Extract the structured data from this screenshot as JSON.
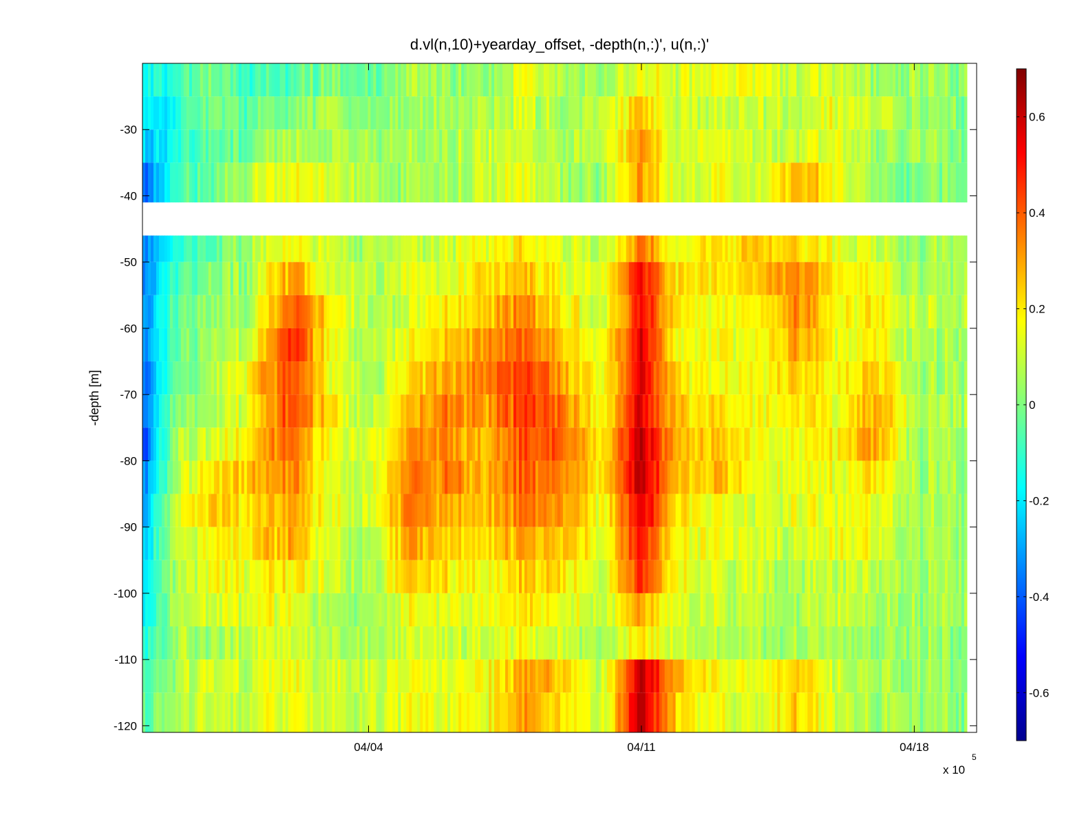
{
  "chart_data": {
    "type": "heatmap",
    "title": "d.vl(n,10)+yearday_offset, -depth(n,:)', u(n,:)'",
    "xlabel": "",
    "ylabel": "-depth [m]",
    "x_multiplier_label": "x 10",
    "x_multiplier_exponent": "5",
    "x_ticks": [
      {
        "value": 4.0,
        "label": "04/04"
      },
      {
        "value": 11.0,
        "label": "04/11"
      },
      {
        "value": 18.0,
        "label": "04/18"
      }
    ],
    "xlim": [
      -1.8,
      19.6
    ],
    "y_ticks": [
      -30,
      -40,
      -50,
      -60,
      -70,
      -80,
      -90,
      -100,
      -110,
      -120
    ],
    "ylim": [
      -121,
      -20
    ],
    "depth_bins": [
      {
        "top": -20,
        "bottom": -25
      },
      {
        "top": -25,
        "bottom": -30
      },
      {
        "top": -30,
        "bottom": -35
      },
      {
        "top": -35,
        "bottom": -41
      },
      {
        "top": -46,
        "bottom": -50
      },
      {
        "top": -50,
        "bottom": -55
      },
      {
        "top": -55,
        "bottom": -60
      },
      {
        "top": -60,
        "bottom": -65
      },
      {
        "top": -65,
        "bottom": -70
      },
      {
        "top": -70,
        "bottom": -75
      },
      {
        "top": -75,
        "bottom": -80
      },
      {
        "top": -80,
        "bottom": -85
      },
      {
        "top": -85,
        "bottom": -90
      },
      {
        "top": -90,
        "bottom": -95
      },
      {
        "top": -95,
        "bottom": -100
      },
      {
        "top": -100,
        "bottom": -105
      },
      {
        "top": -105,
        "bottom": -110
      },
      {
        "top": -110,
        "bottom": -115
      },
      {
        "top": -115,
        "bottom": -121
      }
    ],
    "time_nodes": [
      -1.8,
      -1.0,
      0.0,
      1.0,
      2.0,
      3.0,
      4.0,
      5.0,
      6.0,
      7.0,
      8.0,
      9.0,
      10.0,
      11.0,
      12.0,
      13.0,
      14.0,
      15.0,
      16.0,
      17.0,
      18.0,
      19.6
    ],
    "value_grid": [
      [
        -0.15,
        -0.12,
        0.0,
        -0.12,
        -0.05,
        0.0,
        -0.05,
        0.05,
        0.05,
        0.0,
        0.15,
        0.05,
        0.05,
        0.15,
        0.12,
        0.15,
        0.15,
        0.1,
        0.12,
        0.05,
        0.05,
        0.0
      ],
      [
        -0.2,
        -0.15,
        0.0,
        -0.05,
        0.0,
        0.05,
        0.0,
        0.05,
        0.05,
        0.05,
        0.1,
        0.05,
        0.1,
        0.25,
        0.1,
        0.1,
        0.1,
        0.1,
        0.15,
        0.1,
        0.05,
        0.0
      ],
      [
        -0.25,
        -0.15,
        -0.05,
        0.0,
        0.05,
        0.05,
        0.05,
        0.05,
        0.05,
        0.1,
        0.1,
        0.05,
        0.1,
        0.3,
        0.1,
        0.15,
        0.1,
        0.1,
        0.15,
        0.05,
        0.05,
        0.0
      ],
      [
        -0.4,
        -0.1,
        -0.05,
        0.1,
        0.15,
        0.1,
        0.05,
        0.05,
        0.05,
        0.1,
        0.15,
        0.05,
        0.05,
        0.3,
        0.1,
        0.15,
        0.1,
        0.3,
        0.15,
        0.05,
        0.0,
        0.0
      ],
      [
        -0.35,
        -0.15,
        -0.05,
        0.05,
        0.15,
        0.1,
        0.05,
        0.1,
        0.1,
        0.15,
        0.2,
        0.1,
        0.1,
        0.35,
        0.15,
        0.2,
        0.25,
        0.2,
        0.15,
        0.1,
        0.05,
        0.05
      ],
      [
        -0.35,
        -0.1,
        0.0,
        0.05,
        0.3,
        0.1,
        0.05,
        0.15,
        0.15,
        0.2,
        0.25,
        0.15,
        0.15,
        0.5,
        0.2,
        0.2,
        0.25,
        0.35,
        0.2,
        0.15,
        0.05,
        0.05
      ],
      [
        -0.35,
        -0.05,
        0.0,
        0.05,
        0.4,
        0.2,
        0.05,
        0.1,
        0.2,
        0.25,
        0.35,
        0.2,
        0.1,
        0.5,
        0.2,
        0.15,
        0.15,
        0.35,
        0.15,
        0.2,
        0.1,
        0.05
      ],
      [
        -0.35,
        -0.05,
        0.05,
        0.1,
        0.5,
        0.15,
        0.05,
        0.15,
        0.25,
        0.3,
        0.4,
        0.25,
        0.15,
        0.55,
        0.15,
        0.15,
        0.15,
        0.3,
        0.15,
        0.2,
        0.05,
        0.05
      ],
      [
        -0.4,
        -0.05,
        0.05,
        0.2,
        0.45,
        0.15,
        0.05,
        0.2,
        0.3,
        0.35,
        0.45,
        0.3,
        0.15,
        0.55,
        0.2,
        0.15,
        0.15,
        0.25,
        0.15,
        0.25,
        0.05,
        0.05
      ],
      [
        -0.4,
        0.0,
        0.05,
        0.15,
        0.45,
        0.2,
        0.05,
        0.25,
        0.35,
        0.3,
        0.45,
        0.35,
        0.15,
        0.55,
        0.25,
        0.2,
        0.15,
        0.2,
        0.15,
        0.3,
        0.1,
        0.05
      ],
      [
        -0.45,
        0.05,
        0.1,
        0.2,
        0.4,
        0.15,
        0.1,
        0.3,
        0.35,
        0.25,
        0.4,
        0.4,
        0.2,
        0.6,
        0.25,
        0.25,
        0.15,
        0.15,
        0.2,
        0.3,
        0.05,
        0.05
      ],
      [
        -0.35,
        0.05,
        0.2,
        0.25,
        0.35,
        0.1,
        0.1,
        0.35,
        0.35,
        0.25,
        0.4,
        0.35,
        0.2,
        0.6,
        0.25,
        0.25,
        0.15,
        0.15,
        0.15,
        0.2,
        0.05,
        0.05
      ],
      [
        -0.3,
        0.1,
        0.25,
        0.2,
        0.3,
        0.15,
        0.1,
        0.35,
        0.3,
        0.25,
        0.35,
        0.3,
        0.15,
        0.55,
        0.2,
        0.15,
        0.1,
        0.15,
        0.15,
        0.15,
        0.05,
        0.05
      ],
      [
        -0.25,
        0.1,
        0.15,
        0.2,
        0.3,
        0.1,
        0.05,
        0.3,
        0.25,
        0.2,
        0.3,
        0.25,
        0.15,
        0.5,
        0.15,
        0.15,
        0.1,
        0.1,
        0.15,
        0.15,
        0.05,
        0.05
      ],
      [
        -0.2,
        0.05,
        0.15,
        0.15,
        0.2,
        0.1,
        0.05,
        0.25,
        0.2,
        0.15,
        0.25,
        0.2,
        0.1,
        0.45,
        0.15,
        0.1,
        0.1,
        0.05,
        0.1,
        0.1,
        0.05,
        0.05
      ],
      [
        -0.2,
        0.05,
        0.1,
        0.15,
        0.15,
        0.05,
        0.05,
        0.15,
        0.15,
        0.15,
        0.2,
        0.15,
        0.1,
        0.3,
        0.1,
        0.1,
        0.05,
        0.05,
        0.1,
        0.05,
        0.05,
        0.05
      ],
      [
        -0.15,
        0.05,
        0.05,
        0.1,
        0.1,
        0.05,
        0.05,
        0.1,
        0.1,
        0.1,
        0.15,
        0.1,
        0.05,
        0.2,
        0.1,
        0.05,
        0.05,
        0.05,
        0.05,
        0.05,
        0.05,
        0.0
      ],
      [
        -0.1,
        0.05,
        0.1,
        0.1,
        0.15,
        0.1,
        0.1,
        0.15,
        0.15,
        0.15,
        0.3,
        0.25,
        0.1,
        0.6,
        0.25,
        0.15,
        0.15,
        0.25,
        0.1,
        0.05,
        0.05,
        0.0
      ],
      [
        -0.05,
        0.05,
        0.1,
        0.1,
        0.15,
        0.1,
        0.1,
        0.15,
        0.15,
        0.15,
        0.3,
        0.2,
        0.1,
        0.6,
        0.2,
        0.15,
        0.1,
        0.25,
        0.1,
        0.05,
        0.05,
        0.0
      ]
    ],
    "colorbar": {
      "colormap": "jet",
      "range": [
        -0.7,
        0.7
      ],
      "ticks": [
        0.6,
        0.4,
        0.2,
        0,
        -0.2,
        -0.4,
        -0.6
      ],
      "tick_labels": [
        "0.6",
        "0.4",
        "0.2",
        "0",
        "-0.2",
        "-0.4",
        "-0.6"
      ]
    }
  }
}
